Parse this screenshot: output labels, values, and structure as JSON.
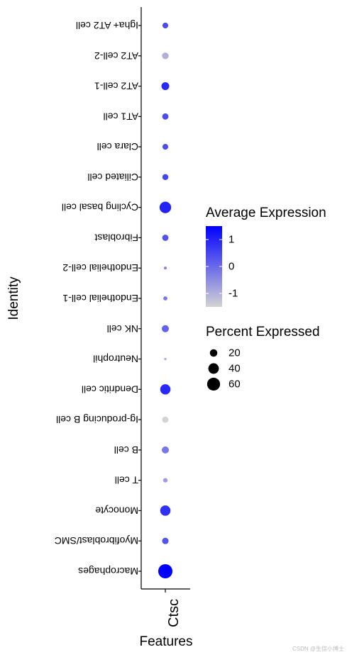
{
  "chart_data": {
    "type": "dot",
    "xlabel": "Features",
    "ylabel": "Identity",
    "features": [
      "Ctsc"
    ],
    "categories": [
      "Igha+ AT2  cell",
      "AT2 cell-2",
      "AT2 cell-1",
      "AT1 cell",
      "Clara cell",
      "Ciliated cell",
      "Cycling basal cell",
      "Fibroblast",
      "Endothelial cell-2",
      "Endothelial cell-1",
      "NK cell",
      "Neutrophil",
      "Dendritic cell",
      "Ig-producing B cell",
      "B cell",
      "T cell",
      "Monocyte",
      "Myofibroblast/SMC",
      "Macrophages"
    ],
    "pct_expressed": [
      12,
      16,
      22,
      14,
      12,
      13,
      48,
      14,
      3,
      6,
      18,
      2,
      38,
      14,
      18,
      7,
      38,
      15,
      72
    ],
    "avg_expression": [
      0.4,
      -1.0,
      0.9,
      0.4,
      0.4,
      0.5,
      1.0,
      0.3,
      -0.4,
      -0.2,
      0.1,
      -0.9,
      0.9,
      -1.5,
      -0.2,
      -0.7,
      0.8,
      0.3,
      1.8
    ],
    "legend": {
      "color_title": "Average Expression",
      "color_ticks": [
        1,
        0,
        -1
      ],
      "color_range": [
        -1.5,
        1.5
      ],
      "color_low": "#d3d3d3",
      "color_high": "#0000ff",
      "size_title": "Percent Expressed",
      "size_ticks": [
        20,
        40,
        60
      ]
    }
  },
  "watermark": "CSDN @生信小博士"
}
